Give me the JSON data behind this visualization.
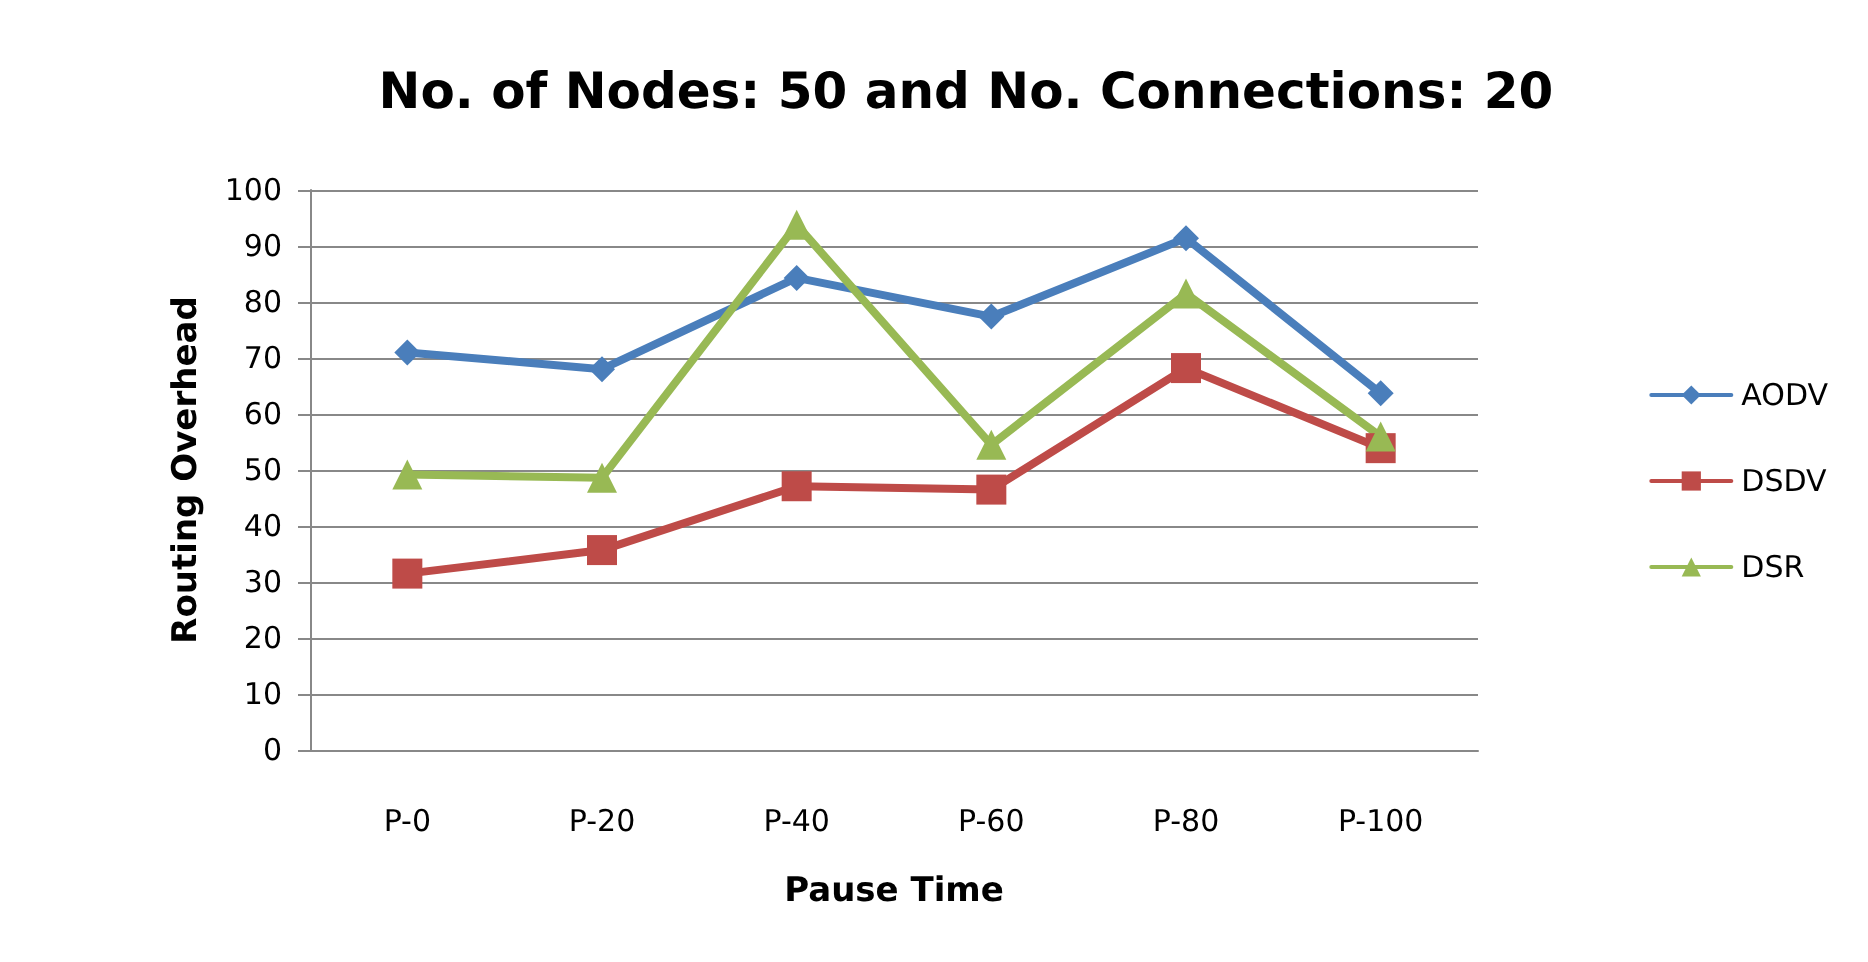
{
  "chart_data": {
    "type": "line",
    "title": "No. of Nodes: 50 and No. Connections: 20",
    "xlabel": "Pause Time",
    "ylabel": "Routing Overhead",
    "categories": [
      "P-0",
      "P-20",
      "P-40",
      "P-60",
      "P-80",
      "P-100"
    ],
    "series": [
      {
        "name": "AODV",
        "color": "#4a7ebb",
        "marker": "diamond",
        "values": [
          71,
          68,
          84.3,
          77.4,
          91.4,
          63.7
        ]
      },
      {
        "name": "DSDV",
        "color": "#be4b48",
        "marker": "square",
        "values": [
          31.5,
          35.7,
          47.1,
          46.5,
          68.2,
          53.9
        ]
      },
      {
        "name": "DSR",
        "color": "#98b954",
        "marker": "triangle",
        "values": [
          49.2,
          48.6,
          93.8,
          54.5,
          81.5,
          56
        ]
      }
    ],
    "ylim": [
      0,
      100
    ],
    "yticks": [
      0,
      10,
      20,
      30,
      40,
      50,
      60,
      70,
      80,
      90,
      100
    ],
    "grid": "y",
    "legend": "right",
    "line_style": "solid"
  }
}
